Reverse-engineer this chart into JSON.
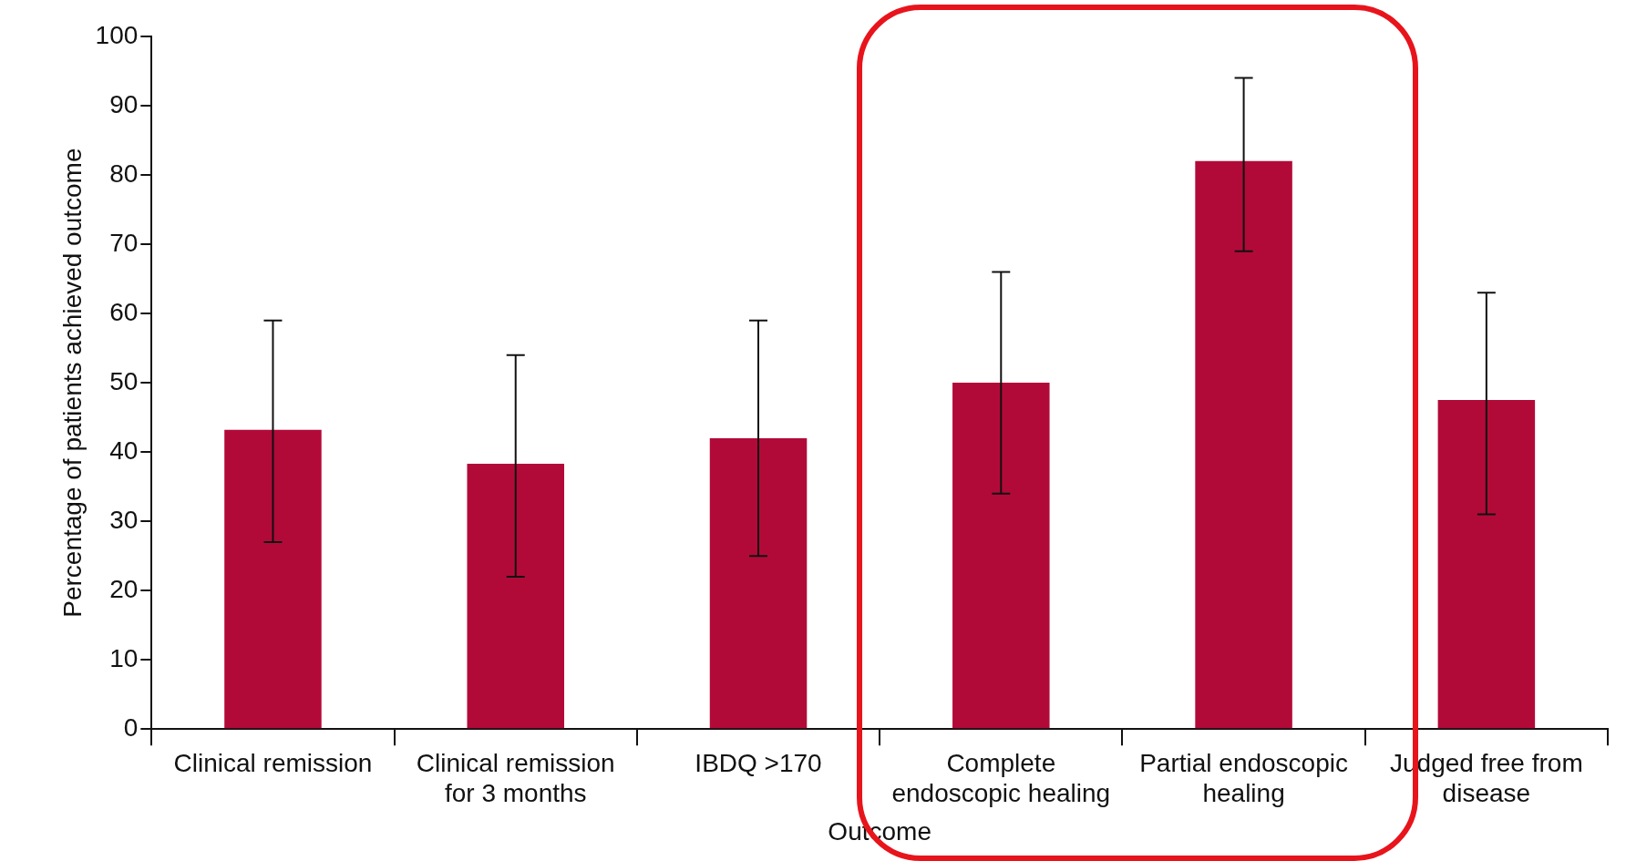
{
  "chart_data": {
    "type": "bar",
    "xlabel": "Outcome",
    "ylabel": "Percentage of patients achieved outcome",
    "categories": [
      "Clinical remission",
      "Clinical remission for 3 months",
      "IBDQ >170",
      "Complete endoscopic healing",
      "Partial endoscopic healing",
      "Judged free from disease"
    ],
    "values": [
      43.2,
      38.3,
      42,
      50,
      82,
      47.5
    ],
    "errors": [
      [
        27,
        59
      ],
      [
        22,
        54
      ],
      [
        25,
        59
      ],
      [
        34,
        66
      ],
      [
        69,
        94
      ],
      [
        31,
        63
      ]
    ],
    "color": "#b20a38",
    "ylim": [
      0,
      100
    ],
    "yticks": [
      0,
      10,
      20,
      30,
      40,
      50,
      60,
      70,
      80,
      90,
      100
    ],
    "grid": false,
    "legend": false
  }
}
